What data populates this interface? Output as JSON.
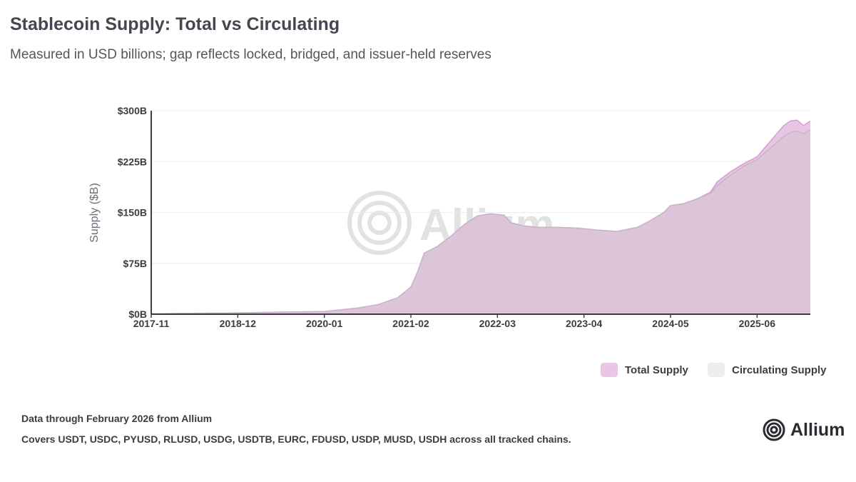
{
  "chart_data": {
    "type": "area",
    "title": "Stablecoin Supply: Total vs Circulating",
    "subtitle": "Measured in USD billions; gap reflects locked, bridged, and issuer-held reserves",
    "xlabel": "",
    "ylabel": "Supply ($B)",
    "ylim": [
      0,
      300
    ],
    "yticks": [
      0,
      75,
      150,
      225,
      300
    ],
    "ytick_labels": [
      "$0B",
      "$75B",
      "$150B",
      "$225B",
      "$300B"
    ],
    "x_start": "2017-11",
    "x_end": "2026-02",
    "xticks": [
      "2017-11",
      "2018-12",
      "2020-01",
      "2021-02",
      "2022-03",
      "2023-04",
      "2024-05",
      "2025-06"
    ],
    "grid": true,
    "legend_position": "bottom-right",
    "series": [
      {
        "name": "Total Supply",
        "color": "#e6c3e3",
        "stroke": "#d49fd0",
        "points": [
          [
            "2017-11",
            0.5
          ],
          [
            "2018-06",
            1.5
          ],
          [
            "2018-12",
            2
          ],
          [
            "2019-06",
            3
          ],
          [
            "2020-01",
            4
          ],
          [
            "2020-06",
            9
          ],
          [
            "2020-09",
            14
          ],
          [
            "2020-12",
            24
          ],
          [
            "2021-02",
            40
          ],
          [
            "2021-03",
            62
          ],
          [
            "2021-04",
            90
          ],
          [
            "2021-06",
            100
          ],
          [
            "2021-08",
            115
          ],
          [
            "2021-10",
            132
          ],
          [
            "2021-12",
            145
          ],
          [
            "2022-02",
            148
          ],
          [
            "2022-04",
            146
          ],
          [
            "2022-05",
            135
          ],
          [
            "2022-07",
            130
          ],
          [
            "2022-09",
            128
          ],
          [
            "2022-12",
            128
          ],
          [
            "2023-03",
            127
          ],
          [
            "2023-06",
            124
          ],
          [
            "2023-09",
            122
          ],
          [
            "2023-12",
            128
          ],
          [
            "2024-02",
            138
          ],
          [
            "2024-04",
            150
          ],
          [
            "2024-05",
            160
          ],
          [
            "2024-07",
            163
          ],
          [
            "2024-09",
            170
          ],
          [
            "2024-11",
            180
          ],
          [
            "2024-12",
            195
          ],
          [
            "2025-02",
            210
          ],
          [
            "2025-04",
            222
          ],
          [
            "2025-06",
            232
          ],
          [
            "2025-08",
            255
          ],
          [
            "2025-10",
            278
          ],
          [
            "2025-11",
            285
          ],
          [
            "2025-12",
            286
          ],
          [
            "2026-01",
            278
          ],
          [
            "2026-02",
            285
          ]
        ]
      },
      {
        "name": "Circulating Supply",
        "color": "#d9c4d6",
        "stroke": "#c8b4c6",
        "points": [
          [
            "2017-11",
            0.5
          ],
          [
            "2018-06",
            1.5
          ],
          [
            "2018-12",
            2
          ],
          [
            "2019-06",
            3
          ],
          [
            "2020-01",
            4
          ],
          [
            "2020-06",
            9
          ],
          [
            "2020-09",
            14
          ],
          [
            "2020-12",
            24
          ],
          [
            "2021-02",
            40
          ],
          [
            "2021-03",
            62
          ],
          [
            "2021-04",
            90
          ],
          [
            "2021-06",
            100
          ],
          [
            "2021-08",
            115
          ],
          [
            "2021-10",
            132
          ],
          [
            "2021-12",
            145
          ],
          [
            "2022-02",
            148
          ],
          [
            "2022-04",
            146
          ],
          [
            "2022-05",
            135
          ],
          [
            "2022-07",
            130
          ],
          [
            "2022-09",
            128
          ],
          [
            "2022-12",
            128
          ],
          [
            "2023-03",
            127
          ],
          [
            "2023-06",
            124
          ],
          [
            "2023-09",
            122
          ],
          [
            "2023-12",
            128
          ],
          [
            "2024-02",
            138
          ],
          [
            "2024-04",
            150
          ],
          [
            "2024-05",
            160
          ],
          [
            "2024-07",
            163
          ],
          [
            "2024-09",
            170
          ],
          [
            "2024-11",
            178
          ],
          [
            "2024-12",
            190
          ],
          [
            "2025-02",
            205
          ],
          [
            "2025-04",
            218
          ],
          [
            "2025-06",
            228
          ],
          [
            "2025-08",
            245
          ],
          [
            "2025-10",
            262
          ],
          [
            "2025-11",
            268
          ],
          [
            "2025-12",
            270
          ],
          [
            "2026-01",
            266
          ],
          [
            "2026-02",
            272
          ]
        ]
      }
    ],
    "watermark": "Allium"
  },
  "footer": {
    "note_line1": "Data through February 2026 from Allium",
    "note_line2": "Covers USDT, USDC, PYUSD, RLUSD, USDG, USDTB, EURC, FDUSD, USDP, MUSD, USDH across all tracked chains.",
    "logo_text": "Allium"
  }
}
